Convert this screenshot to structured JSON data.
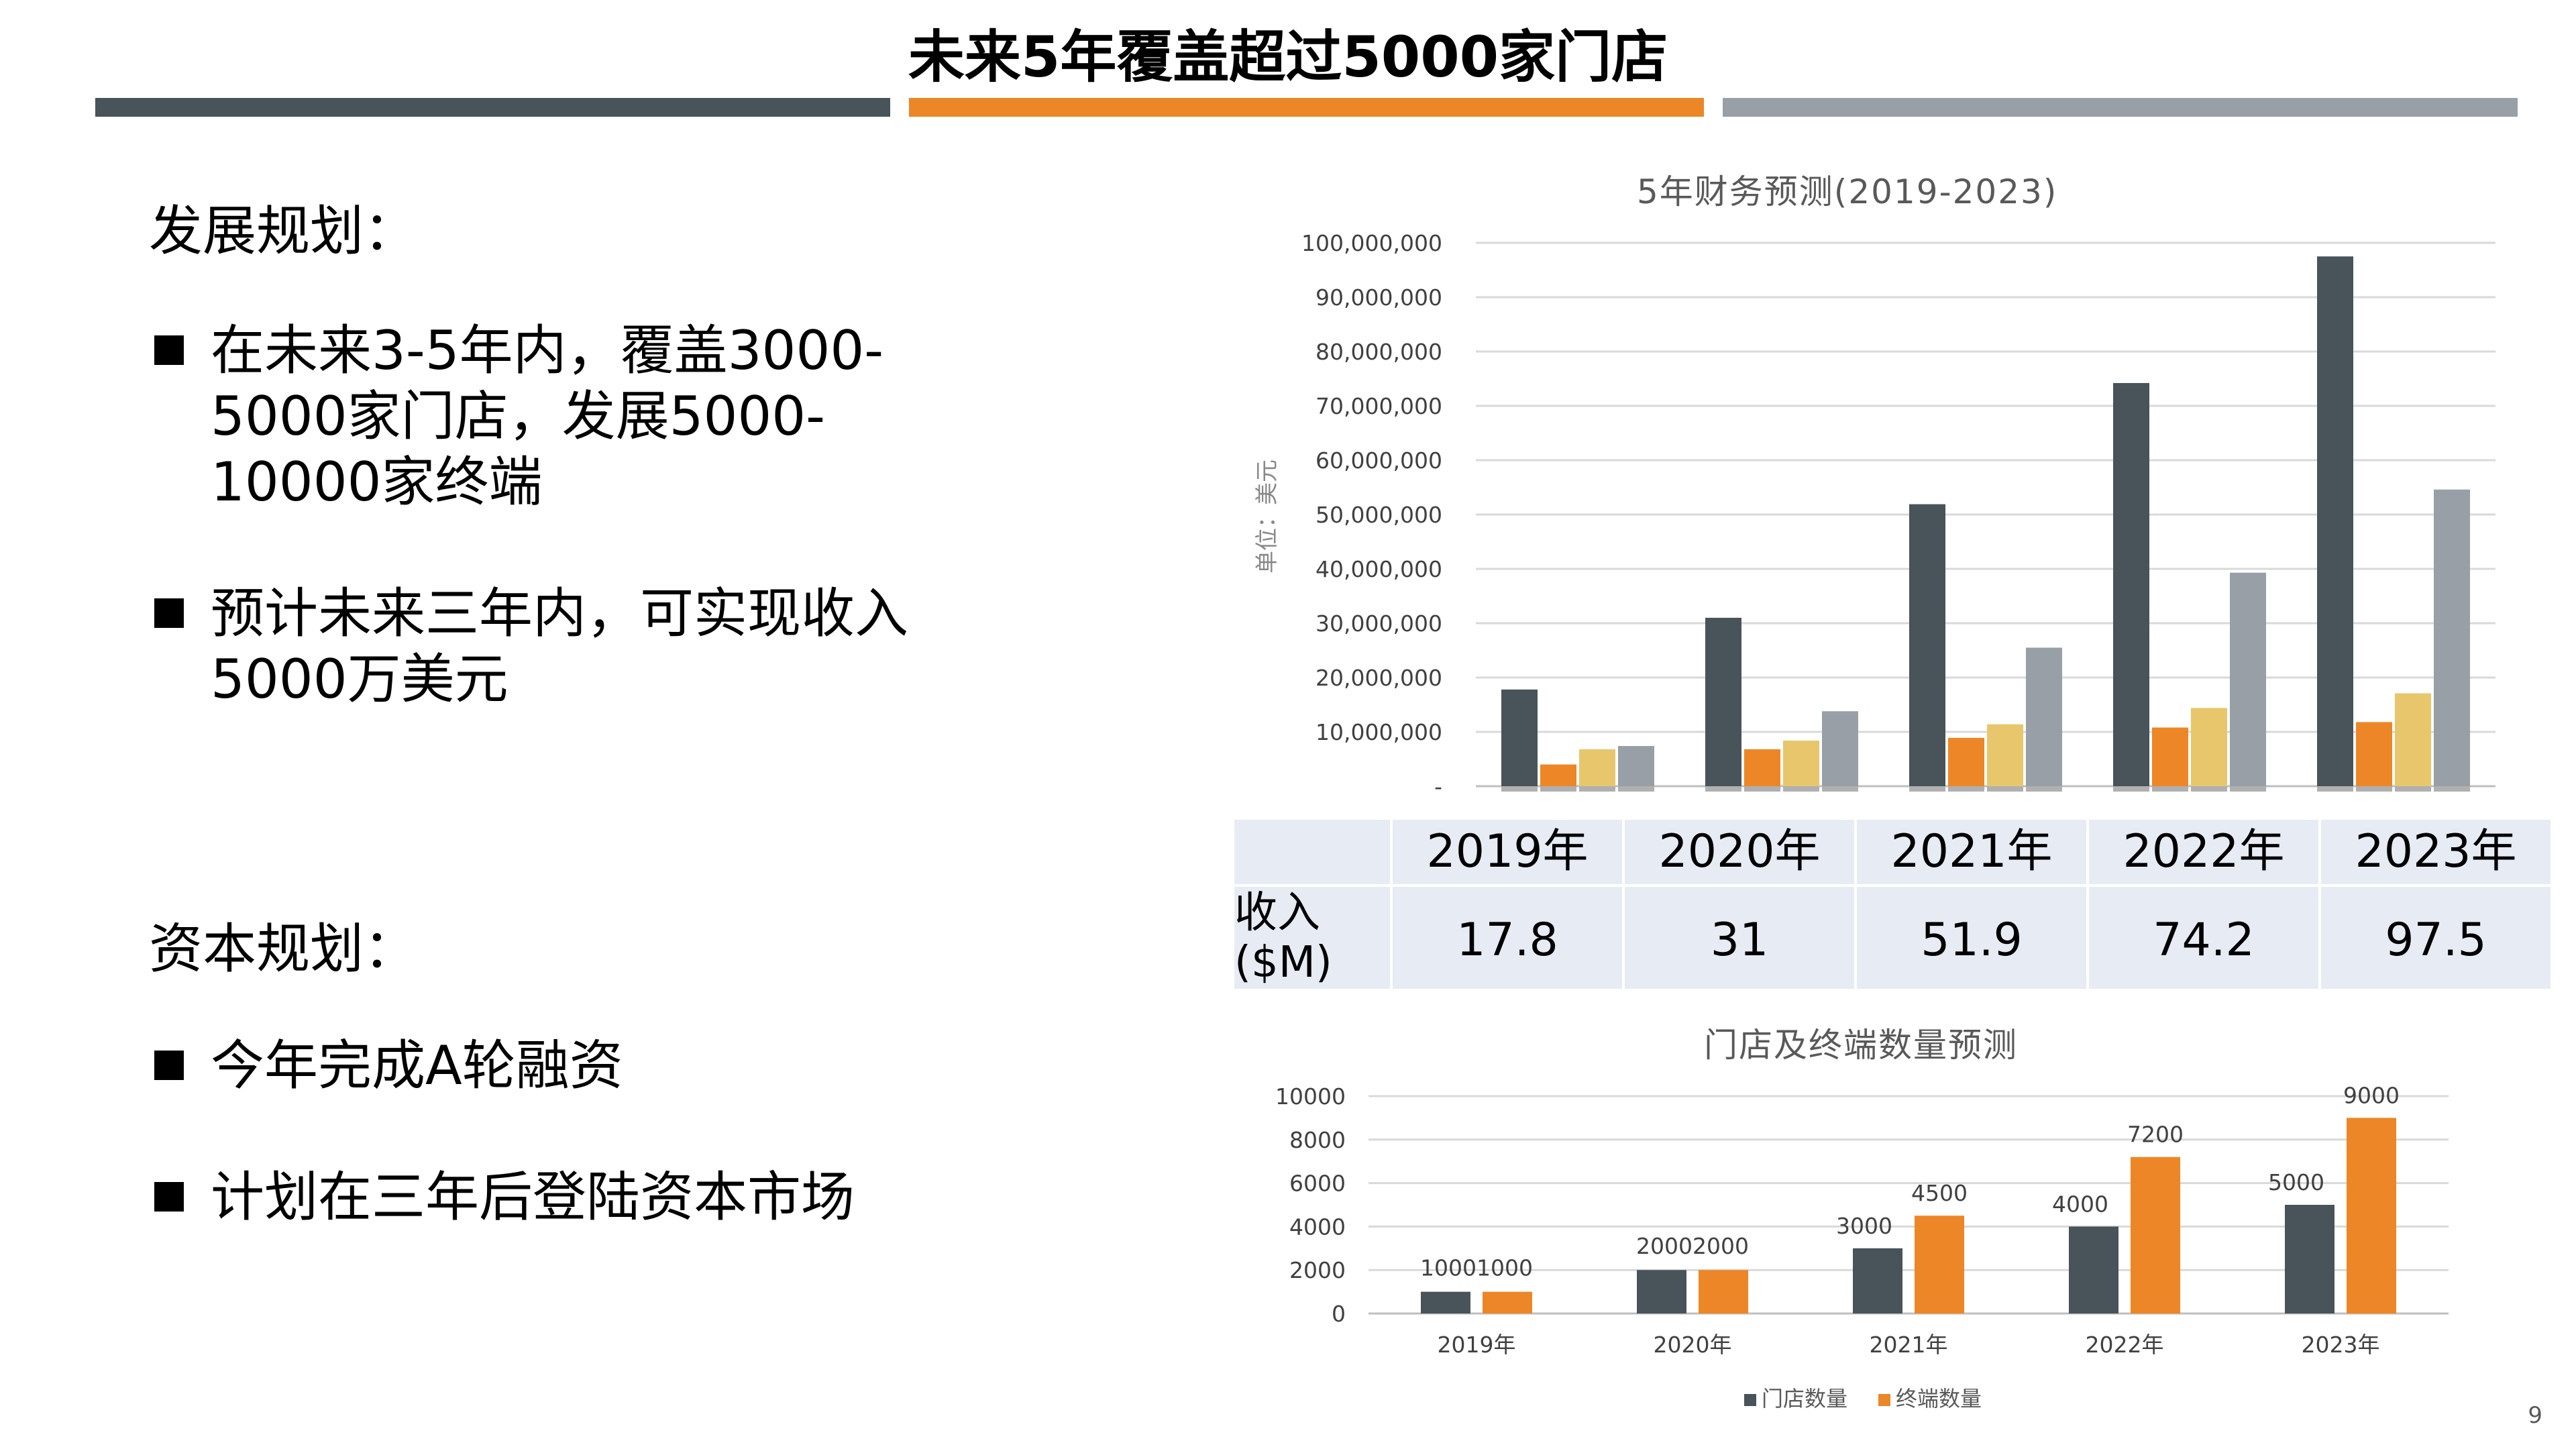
{
  "page": {
    "title": "未来5年覆盖超过5000家门店",
    "page_number": "9",
    "colors": {
      "dark": "#48535a",
      "orange": "#ed8626",
      "gray": "#989fa7",
      "gold": "#e8c66c",
      "table_bg": "#e7ebf4"
    }
  },
  "development": {
    "heading": "发展规划：",
    "bullets": [
      "在未来3-5年内，覆盖3000-5000家门店，发展5000-10000家终端",
      "预计未来三年内，可实现收入5000万美元"
    ]
  },
  "capital": {
    "heading": "资本规划：",
    "bullets": [
      "今年完成A轮融资",
      "计划在三年后登陆资本市场"
    ]
  },
  "revenue_table": {
    "row_label": "收入($M)",
    "years": [
      "2019年",
      "2020年",
      "2021年",
      "2022年",
      "2023年"
    ],
    "values": [
      "17.8",
      "31",
      "51.9",
      "74.2",
      "97.5"
    ]
  },
  "chart_data": [
    {
      "type": "bar",
      "title": "5年财务预测(2019-2023)",
      "ylabel": "单位：美元",
      "categories": [
        "2019年",
        "2020年",
        "2021年",
        "2022年",
        "2023年"
      ],
      "ylim": [
        0,
        100000000
      ],
      "yticks": [
        "-",
        "10,000,000",
        "20,000,000",
        "30,000,000",
        "40,000,000",
        "50,000,000",
        "60,000,000",
        "70,000,000",
        "80,000,000",
        "90,000,000",
        "100,000,000"
      ],
      "grid": true,
      "series": [
        {
          "values": [
            17800000,
            31000000,
            51900000,
            74200000,
            97500000
          ],
          "color": "#48535a"
        },
        {
          "values": [
            4000000,
            6800000,
            8900000,
            10800000,
            11800000
          ],
          "color": "#ed8626"
        },
        {
          "values": [
            6800000,
            8400000,
            11400000,
            14400000,
            17100000
          ],
          "color": "#e8c66c"
        },
        {
          "values": [
            7400000,
            13800000,
            25500000,
            39300000,
            54600000
          ],
          "color": "#989fa7"
        }
      ]
    },
    {
      "type": "bar",
      "title": "门店及终端数量预测",
      "categories": [
        "2019年",
        "2020年",
        "2021年",
        "2022年",
        "2023年"
      ],
      "ylim": [
        0,
        10000
      ],
      "yticks": [
        "0",
        "2000",
        "4000",
        "6000",
        "8000",
        "10000"
      ],
      "grid": true,
      "legend_position": "bottom",
      "series": [
        {
          "name": "门店数量",
          "values": [
            1000,
            2000,
            3000,
            4000,
            5000
          ],
          "color": "#48535a"
        },
        {
          "name": "终端数量",
          "values": [
            1000,
            2000,
            4500,
            7200,
            9000
          ],
          "color": "#ed8626"
        }
      ],
      "data_labels": [
        [
          "1000",
          "1000"
        ],
        [
          "2000",
          "2000"
        ],
        [
          "3000",
          "4500"
        ],
        [
          "4000",
          "7200"
        ],
        [
          "5000",
          "9000"
        ]
      ]
    }
  ]
}
